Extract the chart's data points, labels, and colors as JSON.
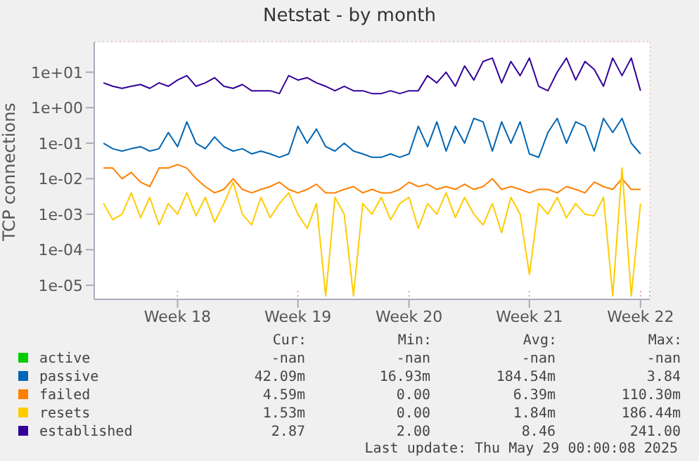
{
  "chart_data": {
    "type": "line",
    "title": "Netstat - by month",
    "ylabel": "TCP connections",
    "log": "y",
    "grid": true,
    "legend": "bottom",
    "marker": "none",
    "line_style": "solid",
    "categories": [
      null,
      null,
      null,
      null,
      null,
      null,
      null,
      null,
      "Week 18",
      null,
      null,
      null,
      null,
      null,
      null,
      null,
      null,
      null,
      null,
      null,
      null,
      "Week 19",
      null,
      null,
      null,
      null,
      null,
      null,
      null,
      null,
      null,
      null,
      null,
      "Week 20",
      null,
      null,
      null,
      null,
      null,
      null,
      null,
      null,
      null,
      null,
      null,
      null,
      "Week 21",
      null,
      null,
      null,
      null,
      null,
      null,
      null,
      null,
      null,
      null,
      null,
      "Week 22"
    ],
    "ylim": [
      4e-06,
      70
    ],
    "yticks": [
      {
        "value": 1e-05,
        "label": "1e-05"
      },
      {
        "value": 0.0001,
        "label": "1e-04"
      },
      {
        "value": 0.001,
        "label": "1e-03"
      },
      {
        "value": 0.01,
        "label": "1e-02"
      },
      {
        "value": 0.1,
        "label": "1e-01"
      },
      {
        "value": 1,
        "label": "1e+00"
      },
      {
        "value": 10,
        "label": "1e+01"
      }
    ],
    "series": [
      {
        "name": "active",
        "color": "#00cc00",
        "values": [
          null,
          null,
          null,
          null,
          null,
          null,
          null,
          null,
          null,
          null,
          null,
          null,
          null,
          null,
          null,
          null,
          null,
          null,
          null,
          null,
          null,
          null,
          null,
          null,
          null,
          null,
          null,
          null,
          null,
          null,
          null,
          null,
          null,
          null,
          null,
          null,
          null,
          null,
          null,
          null,
          null,
          null,
          null,
          null,
          null,
          null,
          null,
          null,
          null,
          null,
          null,
          null,
          null,
          null,
          null,
          null,
          null,
          null,
          null
        ]
      },
      {
        "name": "passive",
        "color": "#0066b3",
        "values": [
          0.1,
          0.07,
          0.06,
          0.07,
          0.08,
          0.06,
          0.07,
          0.2,
          0.08,
          0.4,
          0.1,
          0.07,
          0.15,
          0.08,
          0.06,
          0.07,
          0.05,
          0.06,
          0.05,
          0.04,
          0.05,
          0.3,
          0.1,
          0.25,
          0.08,
          0.06,
          0.1,
          0.06,
          0.05,
          0.04,
          0.04,
          0.05,
          0.04,
          0.05,
          0.3,
          0.08,
          0.4,
          0.06,
          0.3,
          0.1,
          0.5,
          0.4,
          0.06,
          0.4,
          0.1,
          0.4,
          0.05,
          0.04,
          0.2,
          0.5,
          0.1,
          0.4,
          0.3,
          0.06,
          0.5,
          0.2,
          0.5,
          0.1,
          0.05
        ]
      },
      {
        "name": "failed",
        "color": "#ff8000",
        "values": [
          0.02,
          0.02,
          0.01,
          0.015,
          0.008,
          0.006,
          0.02,
          0.02,
          0.025,
          0.02,
          0.01,
          0.006,
          0.004,
          0.005,
          0.01,
          0.005,
          0.004,
          0.005,
          0.006,
          0.008,
          0.005,
          0.004,
          0.005,
          0.007,
          0.004,
          0.004,
          0.005,
          0.006,
          0.004,
          0.005,
          0.004,
          0.004,
          0.005,
          0.008,
          0.006,
          0.007,
          0.005,
          0.006,
          0.005,
          0.007,
          0.005,
          0.006,
          0.01,
          0.005,
          0.006,
          0.005,
          0.004,
          0.005,
          0.005,
          0.004,
          0.006,
          0.005,
          0.004,
          0.008,
          0.006,
          0.005,
          0.01,
          0.005,
          0.005
        ]
      },
      {
        "name": "resets",
        "color": "#ffcc00",
        "values": [
          0.002,
          0.0007,
          0.001,
          0.004,
          0.0008,
          0.003,
          0.0005,
          0.002,
          0.001,
          0.004,
          0.0009,
          0.003,
          0.0006,
          0.002,
          0.008,
          0.001,
          0.0005,
          0.003,
          0.0008,
          0.002,
          0.004,
          0.001,
          0.0004,
          0.002,
          5e-06,
          0.003,
          0.001,
          5e-06,
          0.002,
          0.001,
          0.003,
          0.0007,
          0.002,
          0.003,
          0.0004,
          0.002,
          0.001,
          0.004,
          0.0008,
          0.003,
          0.001,
          0.0005,
          0.002,
          0.0003,
          0.003,
          0.001,
          2e-05,
          0.002,
          0.001,
          0.003,
          0.0008,
          0.002,
          0.001,
          0.0009,
          0.003,
          5e-06,
          0.02,
          5e-06,
          0.002
        ]
      },
      {
        "name": "established",
        "color": "#330099",
        "values": [
          5,
          4,
          3.5,
          4,
          4.5,
          3.5,
          5,
          4,
          6,
          8,
          4,
          5,
          7,
          4,
          3.5,
          4.5,
          3,
          3,
          3,
          2.5,
          8,
          6,
          7,
          5,
          4,
          3,
          4,
          3,
          3,
          2.5,
          2.5,
          3,
          2.5,
          3,
          3,
          8,
          5,
          10,
          4,
          15,
          6,
          20,
          25,
          5,
          20,
          8,
          25,
          4,
          3,
          10,
          25,
          6,
          20,
          12,
          4,
          25,
          8,
          25,
          3
        ]
      }
    ],
    "annotations": [
      "Cur:",
      "Min:",
      "Avg:",
      "Max:",
      "-nan",
      "-nan",
      "-nan",
      "-nan",
      "42.09m",
      "16.93m",
      "184.54m",
      "3.84",
      "4.59m",
      "0.00",
      "6.39m",
      "110.30m",
      "1.53m",
      "0.00",
      "1.84m",
      "186.44m",
      "2.87",
      "2.00",
      "8.46",
      "241.00",
      "Last update: Thu May 29 00:00:08 2025"
    ]
  }
}
